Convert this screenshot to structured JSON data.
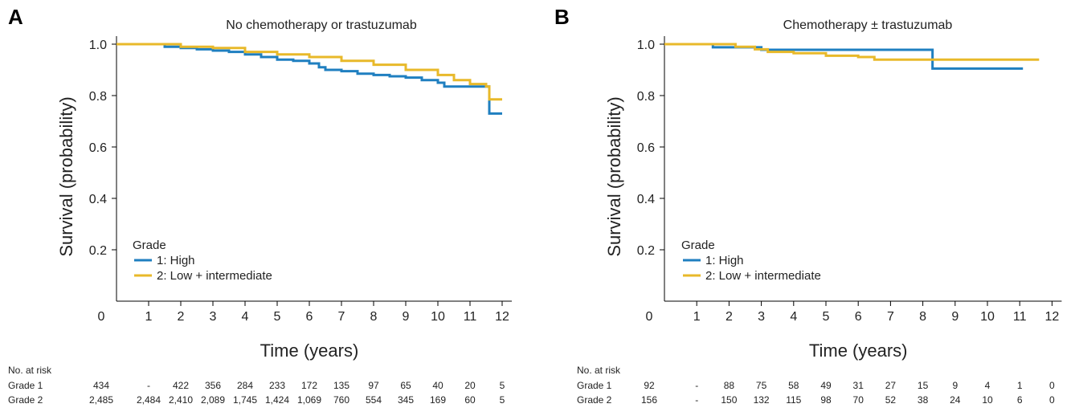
{
  "colors": {
    "series1": "#1f7fc0",
    "series2": "#e8b92a",
    "axis": "#000000",
    "text": "#222222"
  },
  "chart_data": [
    {
      "type": "line",
      "step": true,
      "panel_label": "A",
      "title": "No chemotherapy or trastuzumab",
      "xlabel": "Time (years)",
      "ylabel": "Survival (probability)",
      "xlim": [
        0,
        12
      ],
      "ylim": [
        0,
        1.0
      ],
      "x_ticks": [
        "0",
        "1",
        "2",
        "3",
        "4",
        "5",
        "6",
        "7",
        "8",
        "9",
        "10",
        "11",
        "12"
      ],
      "y_ticks": [
        "0.2",
        "0.4",
        "0.6",
        "0.8",
        "1.0"
      ],
      "legend": {
        "title": "Grade",
        "position": "bottom-left"
      },
      "series": [
        {
          "name": "1: High",
          "color": "#1f7fc0",
          "points": [
            [
              0,
              1.0
            ],
            [
              1,
              1.0
            ],
            [
              1.5,
              0.99
            ],
            [
              2,
              0.985
            ],
            [
              2.5,
              0.98
            ],
            [
              3,
              0.975
            ],
            [
              3.5,
              0.97
            ],
            [
              4,
              0.96
            ],
            [
              4.5,
              0.95
            ],
            [
              5,
              0.94
            ],
            [
              5.5,
              0.935
            ],
            [
              6,
              0.925
            ],
            [
              6.3,
              0.91
            ],
            [
              6.5,
              0.9
            ],
            [
              7,
              0.895
            ],
            [
              7.5,
              0.885
            ],
            [
              8,
              0.88
            ],
            [
              8.5,
              0.875
            ],
            [
              9,
              0.87
            ],
            [
              9.5,
              0.86
            ],
            [
              10,
              0.85
            ],
            [
              10.2,
              0.835
            ],
            [
              11.5,
              0.835
            ],
            [
              11.6,
              0.73
            ],
            [
              12,
              0.73
            ]
          ]
        },
        {
          "name": "2: Low + intermediate",
          "color": "#e8b92a",
          "points": [
            [
              0,
              1.0
            ],
            [
              1,
              1.0
            ],
            [
              2,
              0.99
            ],
            [
              3,
              0.985
            ],
            [
              4,
              0.97
            ],
            [
              5,
              0.96
            ],
            [
              6,
              0.95
            ],
            [
              7,
              0.935
            ],
            [
              8,
              0.92
            ],
            [
              9,
              0.9
            ],
            [
              10,
              0.88
            ],
            [
              10.5,
              0.86
            ],
            [
              11,
              0.845
            ],
            [
              11.5,
              0.835
            ],
            [
              11.6,
              0.785
            ],
            [
              12,
              0.785
            ]
          ]
        }
      ],
      "at_risk": {
        "header": "No. at risk",
        "rows": [
          {
            "label": "Grade 1",
            "values": [
              "434",
              "-",
              "422",
              "356",
              "284",
              "233",
              "172",
              "135",
              "97",
              "65",
              "40",
              "20",
              "5"
            ]
          },
          {
            "label": "Grade 2",
            "values": [
              "2,485",
              "2,484",
              "2,410",
              "2,089",
              "1,745",
              "1,424",
              "1,069",
              "760",
              "554",
              "345",
              "169",
              "60",
              "5"
            ]
          }
        ]
      }
    },
    {
      "type": "line",
      "step": true,
      "panel_label": "B",
      "title": "Chemotherapy ± trastuzumab",
      "xlabel": "Time (years)",
      "ylabel": "Survival (probability)",
      "xlim": [
        0,
        12
      ],
      "ylim": [
        0,
        1.0
      ],
      "x_ticks": [
        "0",
        "1",
        "2",
        "3",
        "4",
        "5",
        "6",
        "7",
        "8",
        "9",
        "10",
        "11",
        "12"
      ],
      "y_ticks": [
        "0.2",
        "0.4",
        "0.6",
        "0.8",
        "1.0"
      ],
      "legend": {
        "title": "Grade",
        "position": "bottom-left"
      },
      "series": [
        {
          "name": "1: High",
          "color": "#1f7fc0",
          "points": [
            [
              0,
              1.0
            ],
            [
              1.5,
              1.0
            ],
            [
              1.5,
              0.988
            ],
            [
              3,
              0.988
            ],
            [
              3,
              0.978
            ],
            [
              8.3,
              0.978
            ],
            [
              8.3,
              0.905
            ],
            [
              11.1,
              0.905
            ]
          ]
        },
        {
          "name": "2: Low + intermediate",
          "color": "#e8b92a",
          "points": [
            [
              0,
              1.0
            ],
            [
              2,
              1.0
            ],
            [
              2.2,
              0.99
            ],
            [
              2.8,
              0.98
            ],
            [
              3.2,
              0.97
            ],
            [
              4,
              0.965
            ],
            [
              5,
              0.955
            ],
            [
              6,
              0.95
            ],
            [
              6.5,
              0.94
            ],
            [
              11.6,
              0.94
            ]
          ]
        }
      ],
      "at_risk": {
        "header": "No. at risk",
        "rows": [
          {
            "label": "Grade 1",
            "values": [
              "92",
              "-",
              "88",
              "75",
              "58",
              "49",
              "31",
              "27",
              "15",
              "9",
              "4",
              "1",
              "0"
            ]
          },
          {
            "label": "Grade 2",
            "values": [
              "156",
              "-",
              "150",
              "132",
              "115",
              "98",
              "70",
              "52",
              "38",
              "24",
              "10",
              "6",
              "0"
            ]
          }
        ]
      }
    }
  ]
}
